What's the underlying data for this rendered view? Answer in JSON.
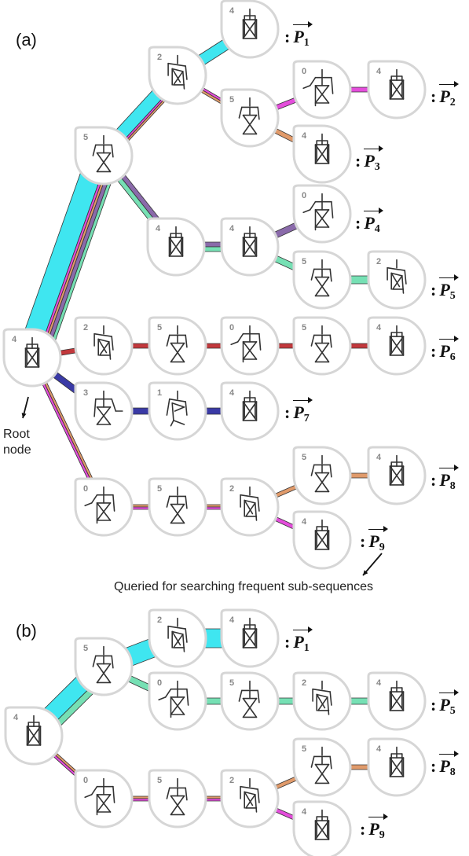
{
  "panel_a": {
    "label": "(a)",
    "pattern_labels": [
      {
        "name": "P",
        "sub": "1"
      },
      {
        "name": "P",
        "sub": "2"
      },
      {
        "name": "P",
        "sub": "3"
      },
      {
        "name": "P",
        "sub": "4"
      },
      {
        "name": "P",
        "sub": "5"
      },
      {
        "name": "P",
        "sub": "6"
      },
      {
        "name": "P",
        "sub": "7"
      },
      {
        "name": "P",
        "sub": "8"
      },
      {
        "name": "P",
        "sub": "9"
      }
    ],
    "root_note": "Root\nnode",
    "query_note": "Queried for searching frequent sub-sequences",
    "node_numbers": [
      "4",
      "2",
      "5",
      "0",
      "4",
      "4",
      "5",
      "4",
      "4",
      "0",
      "5",
      "2",
      "4",
      "2",
      "5",
      "0",
      "5",
      "4",
      "3",
      "1",
      "4",
      "0",
      "5",
      "2",
      "5",
      "4",
      "4"
    ]
  },
  "panel_b": {
    "label": "(b)",
    "pattern_labels": [
      {
        "name": "P",
        "sub": "1"
      },
      {
        "name": "P",
        "sub": "5"
      },
      {
        "name": "P",
        "sub": "8"
      },
      {
        "name": "P",
        "sub": "9"
      }
    ],
    "node_numbers": [
      "4",
      "5",
      "2",
      "4",
      "0",
      "5",
      "2",
      "4",
      "0",
      "5",
      "2",
      "5",
      "4",
      "4"
    ]
  },
  "colors": {
    "cyan": "#3fe6f0",
    "magenta": "#e44ddb",
    "orange": "#e09a6a",
    "purple": "#8a6aaa",
    "green": "#76e0b4",
    "red": "#c2383c",
    "navy": "#3a3aa6",
    "node_border": "#d6d6d6",
    "node_fill": "#ffffff"
  }
}
